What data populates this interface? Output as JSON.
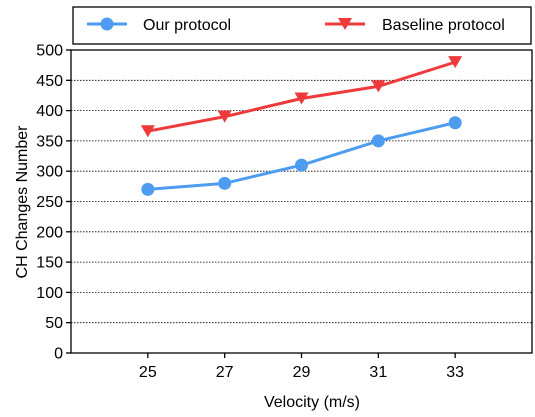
{
  "chart_data": {
    "type": "line",
    "title": "",
    "xlabel": "Velocity (m/s)",
    "ylabel": "CH Changes Number",
    "x": [
      25,
      27,
      29,
      31,
      33
    ],
    "xlim": [
      23,
      35
    ],
    "ylim": [
      0,
      500
    ],
    "yticks": [
      0,
      50,
      100,
      150,
      200,
      250,
      300,
      350,
      400,
      450,
      500
    ],
    "grid": "horizontal-dotted",
    "legend_position": "top",
    "series": [
      {
        "name": "Our protocol",
        "values": [
          270,
          280,
          310,
          350,
          380
        ],
        "color": "#4d9cf0",
        "marker": "circle"
      },
      {
        "name": "Baseline protocol",
        "values": [
          366,
          390,
          420,
          440,
          480
        ],
        "color": "#ee3a3a",
        "marker": "triangle-down"
      }
    ]
  }
}
